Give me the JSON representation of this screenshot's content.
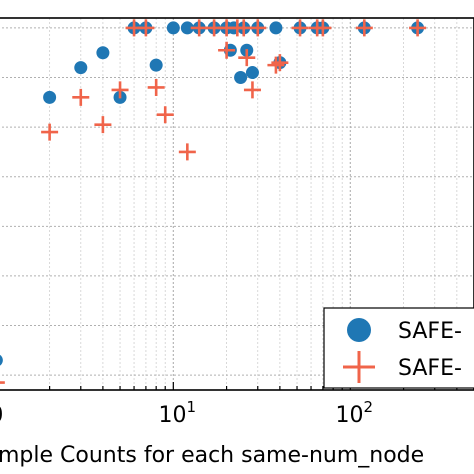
{
  "chart_data": {
    "type": "scatter",
    "xscale": "log",
    "xlim": [
      0.97,
      500
    ],
    "ylim": [
      0.27,
      1.02
    ],
    "grid": true,
    "xlabel": "mple Counts for each same-num_node",
    "ylabel": "",
    "title": "",
    "xtick_labels": [
      {
        "value": 1,
        "base": "0",
        "exp": ""
      },
      {
        "value": 10,
        "base": "10",
        "exp": "1"
      },
      {
        "value": 100,
        "base": "10",
        "exp": "2"
      }
    ],
    "legend": {
      "placement": "lower-right",
      "entries": [
        "SAFE-",
        "SAFE-"
      ]
    },
    "series": [
      {
        "marker": "circle",
        "color": "#1f77b4",
        "points": [
          {
            "x": 1,
            "y": 0.33
          },
          {
            "x": 2,
            "y": 0.86
          },
          {
            "x": 3,
            "y": 0.92
          },
          {
            "x": 4,
            "y": 0.95
          },
          {
            "x": 5,
            "y": 0.86
          },
          {
            "x": 6,
            "y": 1.0
          },
          {
            "x": 7,
            "y": 1.0
          },
          {
            "x": 8,
            "y": 0.925
          },
          {
            "x": 10,
            "y": 1.0
          },
          {
            "x": 12,
            "y": 1.0
          },
          {
            "x": 14,
            "y": 1.0
          },
          {
            "x": 17,
            "y": 1.0
          },
          {
            "x": 20,
            "y": 1.0
          },
          {
            "x": 21,
            "y": 0.955
          },
          {
            "x": 22,
            "y": 1.0
          },
          {
            "x": 24,
            "y": 0.9
          },
          {
            "x": 25,
            "y": 1.0
          },
          {
            "x": 26,
            "y": 0.955
          },
          {
            "x": 28,
            "y": 0.91
          },
          {
            "x": 30,
            "y": 1.0
          },
          {
            "x": 38,
            "y": 1.0
          },
          {
            "x": 40,
            "y": 0.93
          },
          {
            "x": 52,
            "y": 1.0
          },
          {
            "x": 65,
            "y": 1.0
          },
          {
            "x": 70,
            "y": 1.0
          },
          {
            "x": 120,
            "y": 1.0
          },
          {
            "x": 240,
            "y": 1.0
          }
        ]
      },
      {
        "marker": "plus",
        "color": "#f0644a",
        "points": [
          {
            "x": 1,
            "y": 0.285
          },
          {
            "x": 2,
            "y": 0.79
          },
          {
            "x": 3,
            "y": 0.86
          },
          {
            "x": 4,
            "y": 0.805
          },
          {
            "x": 5,
            "y": 0.875
          },
          {
            "x": 6,
            "y": 1.0
          },
          {
            "x": 7,
            "y": 1.0
          },
          {
            "x": 8,
            "y": 0.88
          },
          {
            "x": 9,
            "y": 0.825
          },
          {
            "x": 12,
            "y": 0.75
          },
          {
            "x": 14,
            "y": 1.0
          },
          {
            "x": 17,
            "y": 1.0
          },
          {
            "x": 20,
            "y": 1.0
          },
          {
            "x": 20,
            "y": 0.955
          },
          {
            "x": 23,
            "y": 1.0
          },
          {
            "x": 25,
            "y": 1.0
          },
          {
            "x": 26,
            "y": 0.94
          },
          {
            "x": 28,
            "y": 0.875
          },
          {
            "x": 30,
            "y": 1.0
          },
          {
            "x": 38,
            "y": 0.925
          },
          {
            "x": 40,
            "y": 0.93
          },
          {
            "x": 52,
            "y": 1.0
          },
          {
            "x": 65,
            "y": 1.0
          },
          {
            "x": 70,
            "y": 1.0
          },
          {
            "x": 120,
            "y": 1.0
          },
          {
            "x": 240,
            "y": 1.0
          }
        ]
      }
    ]
  }
}
